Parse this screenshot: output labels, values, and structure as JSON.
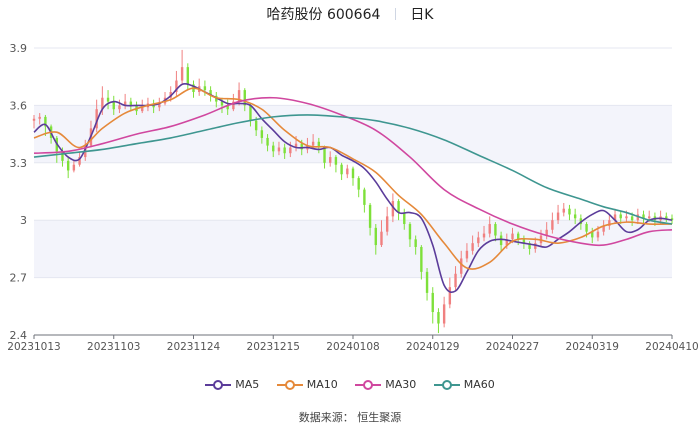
{
  "header": {
    "stock_name": "哈药股份 600664",
    "period": "日K"
  },
  "source": "数据来源：  恒生聚源",
  "chart_data": {
    "type": "candlestick",
    "ylim": [
      2.4,
      3.9
    ],
    "yticks": [
      "2.4",
      "2.7",
      "3",
      "3.3",
      "3.6",
      "3.9"
    ],
    "ytick_values": [
      2.4,
      2.7,
      3.0,
      3.3,
      3.6,
      3.9
    ],
    "xticks": [
      "20231013",
      "20231103",
      "20231124",
      "20231215",
      "20240108",
      "20240129",
      "20240227",
      "20240319",
      "20240410"
    ],
    "up_color": "#f08080",
    "down_color": "#7ee03a",
    "series": [
      {
        "name": "MA5",
        "color": "#5b3c9a",
        "values": [
          [
            0,
            3.46
          ],
          [
            4,
            3.5
          ],
          [
            8,
            3.4
          ],
          [
            12,
            3.33
          ],
          [
            16,
            3.32
          ],
          [
            20,
            3.44
          ],
          [
            24,
            3.58
          ],
          [
            28,
            3.62
          ],
          [
            32,
            3.6
          ],
          [
            36,
            3.6
          ],
          [
            40,
            3.6
          ],
          [
            44,
            3.61
          ],
          [
            48,
            3.65
          ],
          [
            52,
            3.71
          ],
          [
            56,
            3.7
          ],
          [
            60,
            3.67
          ],
          [
            64,
            3.64
          ],
          [
            68,
            3.61
          ],
          [
            72,
            3.61
          ],
          [
            76,
            3.6
          ],
          [
            80,
            3.53
          ],
          [
            84,
            3.47
          ],
          [
            88,
            3.41
          ],
          [
            92,
            3.38
          ],
          [
            96,
            3.38
          ],
          [
            100,
            3.37
          ],
          [
            104,
            3.38
          ],
          [
            108,
            3.34
          ],
          [
            112,
            3.31
          ],
          [
            116,
            3.27
          ],
          [
            120,
            3.2
          ],
          [
            124,
            3.11
          ],
          [
            128,
            3.04
          ],
          [
            132,
            3.04
          ],
          [
            136,
            3.01
          ],
          [
            140,
            2.87
          ],
          [
            144,
            2.66
          ],
          [
            148,
            2.63
          ],
          [
            152,
            2.73
          ],
          [
            156,
            2.84
          ],
          [
            160,
            2.89
          ],
          [
            164,
            2.9
          ],
          [
            168,
            2.89
          ],
          [
            172,
            2.88
          ],
          [
            176,
            2.87
          ],
          [
            180,
            2.86
          ],
          [
            184,
            2.9
          ],
          [
            188,
            2.94
          ],
          [
            192,
            2.99
          ],
          [
            196,
            3.03
          ],
          [
            200,
            3.05
          ],
          [
            204,
            3.0
          ],
          [
            208,
            2.94
          ],
          [
            212,
            2.95
          ],
          [
            216,
            3.0
          ],
          [
            220,
            3.01
          ],
          [
            224,
            3.0
          ]
        ]
      },
      {
        "name": "MA10",
        "color": "#e5893a",
        "values": [
          [
            0,
            3.43
          ],
          [
            8,
            3.46
          ],
          [
            16,
            3.38
          ],
          [
            24,
            3.48
          ],
          [
            32,
            3.56
          ],
          [
            40,
            3.6
          ],
          [
            48,
            3.63
          ],
          [
            56,
            3.69
          ],
          [
            64,
            3.64
          ],
          [
            72,
            3.63
          ],
          [
            80,
            3.58
          ],
          [
            88,
            3.47
          ],
          [
            96,
            3.39
          ],
          [
            104,
            3.38
          ],
          [
            112,
            3.32
          ],
          [
            120,
            3.25
          ],
          [
            128,
            3.13
          ],
          [
            136,
            3.03
          ],
          [
            144,
            2.88
          ],
          [
            152,
            2.75
          ],
          [
            160,
            2.78
          ],
          [
            168,
            2.89
          ],
          [
            176,
            2.9
          ],
          [
            184,
            2.88
          ],
          [
            192,
            2.91
          ],
          [
            200,
            2.97
          ],
          [
            208,
            2.99
          ],
          [
            216,
            2.98
          ],
          [
            224,
            2.98
          ]
        ]
      },
      {
        "name": "MA30",
        "color": "#d0479f",
        "values": [
          [
            0,
            3.35
          ],
          [
            12,
            3.36
          ],
          [
            24,
            3.4
          ],
          [
            36,
            3.45
          ],
          [
            48,
            3.49
          ],
          [
            60,
            3.55
          ],
          [
            72,
            3.62
          ],
          [
            84,
            3.64
          ],
          [
            96,
            3.61
          ],
          [
            108,
            3.55
          ],
          [
            120,
            3.47
          ],
          [
            132,
            3.33
          ],
          [
            144,
            3.16
          ],
          [
            156,
            3.06
          ],
          [
            168,
            2.98
          ],
          [
            180,
            2.92
          ],
          [
            192,
            2.88
          ],
          [
            200,
            2.87
          ],
          [
            208,
            2.9
          ],
          [
            216,
            2.94
          ],
          [
            224,
            2.95
          ]
        ]
      },
      {
        "name": "MA60",
        "color": "#3e9690",
        "values": [
          [
            0,
            3.33
          ],
          [
            12,
            3.35
          ],
          [
            24,
            3.37
          ],
          [
            36,
            3.4
          ],
          [
            48,
            3.43
          ],
          [
            60,
            3.47
          ],
          [
            72,
            3.51
          ],
          [
            84,
            3.54
          ],
          [
            96,
            3.55
          ],
          [
            108,
            3.54
          ],
          [
            120,
            3.52
          ],
          [
            132,
            3.48
          ],
          [
            144,
            3.42
          ],
          [
            156,
            3.34
          ],
          [
            168,
            3.26
          ],
          [
            180,
            3.17
          ],
          [
            192,
            3.11
          ],
          [
            200,
            3.07
          ],
          [
            208,
            3.04
          ],
          [
            216,
            3.0
          ],
          [
            224,
            2.98
          ]
        ]
      }
    ],
    "candles": [
      [
        0,
        3.52,
        3.53,
        3.55,
        3.48
      ],
      [
        2,
        3.53,
        3.54,
        3.56,
        3.5
      ],
      [
        4,
        3.54,
        3.49,
        3.55,
        3.44
      ],
      [
        6,
        3.49,
        3.43,
        3.5,
        3.4
      ],
      [
        8,
        3.43,
        3.36,
        3.44,
        3.3
      ],
      [
        10,
        3.36,
        3.31,
        3.38,
        3.28
      ],
      [
        12,
        3.31,
        3.26,
        3.33,
        3.22
      ],
      [
        14,
        3.26,
        3.29,
        3.31,
        3.25
      ],
      [
        16,
        3.29,
        3.33,
        3.36,
        3.28
      ],
      [
        18,
        3.33,
        3.39,
        3.42,
        3.31
      ],
      [
        20,
        3.39,
        3.48,
        3.52,
        3.38
      ],
      [
        22,
        3.48,
        3.58,
        3.63,
        3.46
      ],
      [
        24,
        3.58,
        3.64,
        3.7,
        3.55
      ],
      [
        26,
        3.64,
        3.62,
        3.68,
        3.58
      ],
      [
        28,
        3.62,
        3.58,
        3.65,
        3.55
      ],
      [
        30,
        3.58,
        3.6,
        3.63,
        3.56
      ],
      [
        32,
        3.6,
        3.62,
        3.66,
        3.58
      ],
      [
        34,
        3.62,
        3.6,
        3.64,
        3.57
      ],
      [
        36,
        3.6,
        3.57,
        3.62,
        3.55
      ],
      [
        38,
        3.57,
        3.59,
        3.63,
        3.56
      ],
      [
        40,
        3.59,
        3.61,
        3.64,
        3.57
      ],
      [
        42,
        3.61,
        3.59,
        3.63,
        3.56
      ],
      [
        44,
        3.59,
        3.61,
        3.64,
        3.57
      ],
      [
        46,
        3.61,
        3.64,
        3.67,
        3.6
      ],
      [
        48,
        3.64,
        3.67,
        3.7,
        3.62
      ],
      [
        50,
        3.67,
        3.73,
        3.78,
        3.65
      ],
      [
        52,
        3.73,
        3.8,
        3.89,
        3.71
      ],
      [
        54,
        3.8,
        3.71,
        3.82,
        3.68
      ],
      [
        56,
        3.71,
        3.67,
        3.73,
        3.64
      ],
      [
        58,
        3.67,
        3.7,
        3.74,
        3.65
      ],
      [
        60,
        3.7,
        3.68,
        3.73,
        3.65
      ],
      [
        62,
        3.68,
        3.65,
        3.7,
        3.62
      ],
      [
        64,
        3.65,
        3.62,
        3.67,
        3.59
      ],
      [
        66,
        3.62,
        3.6,
        3.64,
        3.56
      ],
      [
        68,
        3.6,
        3.58,
        3.63,
        3.55
      ],
      [
        70,
        3.58,
        3.62,
        3.66,
        3.57
      ],
      [
        72,
        3.62,
        3.68,
        3.72,
        3.6
      ],
      [
        74,
        3.68,
        3.6,
        3.69,
        3.57
      ],
      [
        76,
        3.6,
        3.52,
        3.61,
        3.49
      ],
      [
        78,
        3.52,
        3.47,
        3.54,
        3.44
      ],
      [
        80,
        3.47,
        3.43,
        3.49,
        3.4
      ],
      [
        82,
        3.43,
        3.39,
        3.45,
        3.36
      ],
      [
        84,
        3.39,
        3.36,
        3.41,
        3.33
      ],
      [
        86,
        3.36,
        3.38,
        3.41,
        3.34
      ],
      [
        88,
        3.38,
        3.35,
        3.4,
        3.32
      ],
      [
        90,
        3.35,
        3.38,
        3.41,
        3.33
      ],
      [
        92,
        3.38,
        3.4,
        3.44,
        3.36
      ],
      [
        94,
        3.4,
        3.37,
        3.42,
        3.34
      ],
      [
        96,
        3.37,
        3.39,
        3.43,
        3.35
      ],
      [
        98,
        3.39,
        3.41,
        3.45,
        3.37
      ],
      [
        100,
        3.41,
        3.38,
        3.43,
        3.35
      ],
      [
        102,
        3.38,
        3.3,
        3.39,
        3.27
      ],
      [
        104,
        3.3,
        3.33,
        3.36,
        3.28
      ],
      [
        106,
        3.33,
        3.29,
        3.34,
        3.25
      ],
      [
        108,
        3.29,
        3.24,
        3.3,
        3.21
      ],
      [
        110,
        3.24,
        3.27,
        3.29,
        3.22
      ],
      [
        112,
        3.27,
        3.22,
        3.28,
        3.18
      ],
      [
        114,
        3.22,
        3.16,
        3.23,
        3.12
      ],
      [
        116,
        3.16,
        3.08,
        3.17,
        3.04
      ],
      [
        118,
        3.08,
        2.96,
        3.09,
        2.92
      ],
      [
        120,
        2.96,
        2.87,
        2.98,
        2.82
      ],
      [
        122,
        2.87,
        2.94,
        3.0,
        2.86
      ],
      [
        124,
        2.94,
        3.02,
        3.07,
        2.92
      ],
      [
        126,
        3.02,
        3.1,
        3.14,
        2.99
      ],
      [
        128,
        3.1,
        3.04,
        3.11,
        3.0
      ],
      [
        130,
        3.04,
        2.98,
        3.06,
        2.95
      ],
      [
        132,
        2.98,
        2.9,
        2.99,
        2.86
      ],
      [
        134,
        2.9,
        2.86,
        2.92,
        2.82
      ],
      [
        136,
        2.86,
        2.73,
        2.87,
        2.69
      ],
      [
        138,
        2.73,
        2.62,
        2.75,
        2.58
      ],
      [
        140,
        2.62,
        2.52,
        2.65,
        2.46
      ],
      [
        142,
        2.52,
        2.46,
        2.54,
        2.41
      ],
      [
        144,
        2.46,
        2.56,
        2.6,
        2.44
      ],
      [
        146,
        2.56,
        2.65,
        2.7,
        2.54
      ],
      [
        148,
        2.65,
        2.72,
        2.76,
        2.63
      ],
      [
        150,
        2.72,
        2.8,
        2.84,
        2.7
      ],
      [
        152,
        2.8,
        2.84,
        2.88,
        2.78
      ],
      [
        154,
        2.84,
        2.88,
        2.92,
        2.82
      ],
      [
        156,
        2.88,
        2.91,
        2.94,
        2.86
      ],
      [
        158,
        2.91,
        2.93,
        2.97,
        2.89
      ],
      [
        160,
        2.93,
        2.98,
        3.02,
        2.91
      ],
      [
        162,
        2.98,
        2.92,
        2.99,
        2.89
      ],
      [
        164,
        2.92,
        2.87,
        2.94,
        2.84
      ],
      [
        166,
        2.87,
        2.9,
        2.93,
        2.85
      ],
      [
        168,
        2.9,
        2.93,
        2.96,
        2.88
      ],
      [
        170,
        2.93,
        2.9,
        2.94,
        2.87
      ],
      [
        172,
        2.9,
        2.88,
        2.92,
        2.85
      ],
      [
        174,
        2.88,
        2.85,
        2.89,
        2.82
      ],
      [
        176,
        2.85,
        2.88,
        2.91,
        2.83
      ],
      [
        178,
        2.88,
        2.92,
        2.95,
        2.86
      ],
      [
        180,
        2.92,
        2.95,
        2.99,
        2.9
      ],
      [
        182,
        2.95,
        3.0,
        3.04,
        2.93
      ],
      [
        184,
        3.0,
        3.04,
        3.08,
        2.98
      ],
      [
        186,
        3.04,
        3.06,
        3.09,
        3.02
      ],
      [
        188,
        3.06,
        3.03,
        3.08,
        3.0
      ],
      [
        190,
        3.03,
        3.01,
        3.06,
        2.98
      ],
      [
        192,
        3.01,
        2.98,
        3.03,
        2.95
      ],
      [
        194,
        2.98,
        2.94,
        2.99,
        2.91
      ],
      [
        196,
        2.94,
        2.91,
        2.96,
        2.88
      ],
      [
        198,
        2.91,
        2.94,
        2.97,
        2.89
      ],
      [
        200,
        2.94,
        2.97,
        3.0,
        2.92
      ],
      [
        202,
        2.97,
        3.0,
        3.03,
        2.95
      ],
      [
        204,
        3.0,
        3.03,
        3.06,
        2.98
      ],
      [
        206,
        3.03,
        3.01,
        3.05,
        2.98
      ],
      [
        208,
        3.01,
        3.02,
        3.05,
        2.99
      ],
      [
        210,
        3.02,
        3.0,
        3.04,
        2.97
      ],
      [
        212,
        3.0,
        3.03,
        3.06,
        2.98
      ],
      [
        214,
        3.03,
        3.01,
        3.05,
        2.98
      ],
      [
        216,
        3.01,
        3.02,
        3.05,
        2.99
      ],
      [
        218,
        3.02,
        3.0,
        3.04,
        2.97
      ],
      [
        220,
        3.0,
        3.02,
        3.05,
        2.98
      ],
      [
        222,
        3.02,
        3.01,
        3.04,
        2.99
      ],
      [
        224,
        3.01,
        3.0,
        3.03,
        2.98
      ]
    ],
    "x_range": [
      0,
      224
    ]
  }
}
